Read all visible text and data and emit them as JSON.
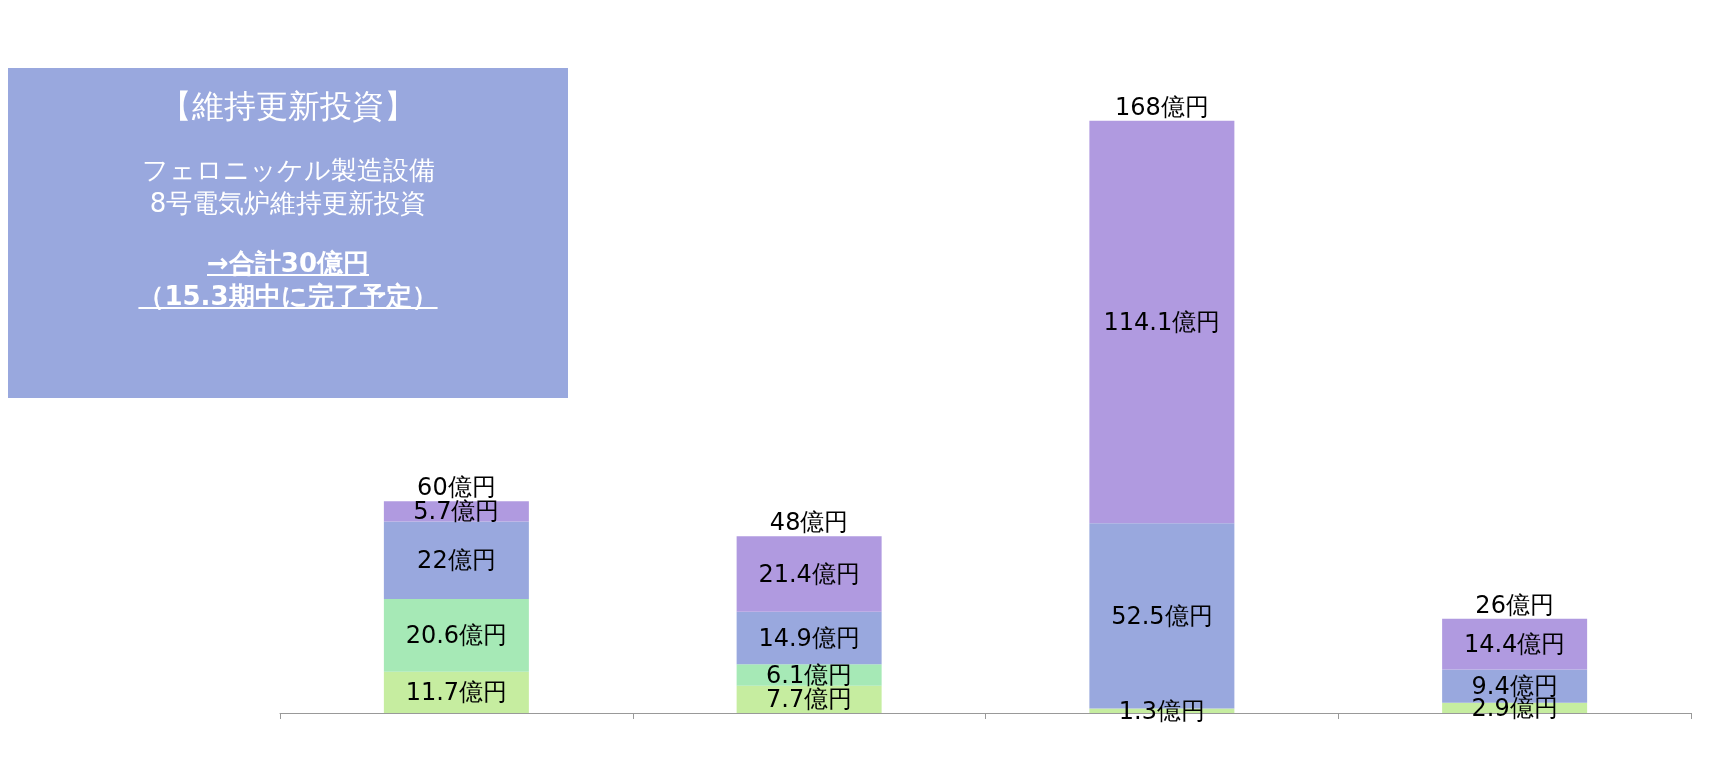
{
  "chart_data": {
    "type": "bar",
    "stacked": true,
    "categories": [
      null,
      null,
      null,
      null
    ],
    "series": [
      {
        "color": "#c6eda0",
        "values": [
          11.7,
          7.7,
          1.3,
          2.9
        ],
        "value_labels": [
          "11.7億円",
          "7.7億円",
          "1.3億円",
          "2.9億円"
        ]
      },
      {
        "color": "#a6e9b6",
        "values": [
          20.6,
          6.1,
          null,
          null
        ],
        "value_labels": [
          "20.6億円",
          "6.1億円",
          null,
          null
        ]
      },
      {
        "color": "#99a8de",
        "values": [
          22,
          14.9,
          52.5,
          9.4
        ],
        "value_labels": [
          "22億円",
          "14.9億円",
          "52.5億円",
          "9.4億円"
        ]
      },
      {
        "color": "#b09ae0",
        "values": [
          5.7,
          21.4,
          114.1,
          14.4
        ],
        "value_labels": [
          "5.7億円",
          "21.4億円",
          "114.1億円",
          "14.4億円"
        ]
      }
    ],
    "totals": [
      "60億円",
      "48億円",
      "168億円",
      "26億円"
    ],
    "annotations": [
      "【維持更新投資】",
      "フェロニッケル製造設備\n8号電気炉維持更新投資",
      "→合計30億円",
      "（15.3期中に完了予定）"
    ]
  }
}
